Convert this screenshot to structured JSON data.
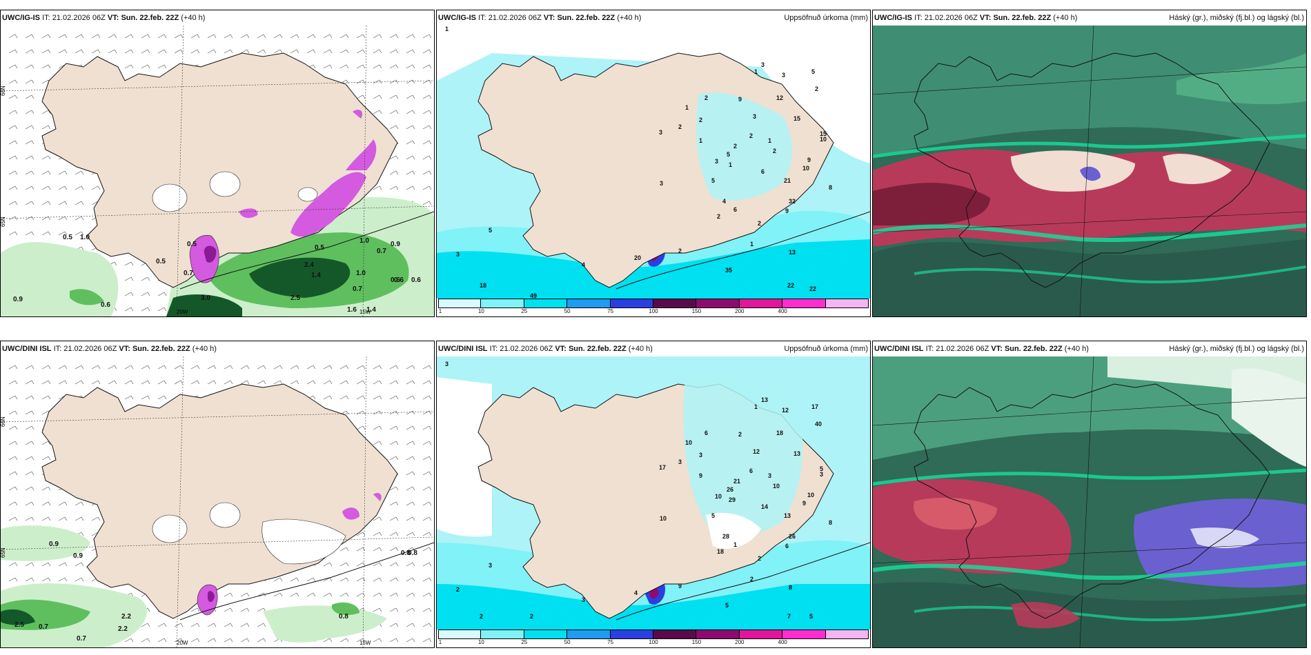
{
  "panels": [
    {
      "model": "UWC/IG-IS",
      "it_label": "IT:",
      "it": "21.02.2026 06Z",
      "vt_label": "VT:",
      "vt": "Sun. 22.feb. 22Z",
      "lead": "(+40 h)",
      "right": ""
    },
    {
      "model": "UWC/IG-IS",
      "it_label": "IT:",
      "it": "21.02.2026 06Z",
      "vt_label": "VT:",
      "vt": "Sun. 22.feb. 22Z",
      "lead": "(+40 h)",
      "right": "Uppsöfnuð úrkoma (mm)"
    },
    {
      "model": "UWC/IG-IS",
      "it_label": "IT:",
      "it": "21.02.2026 06Z",
      "vt_label": "VT:",
      "vt": "Sun. 22.feb. 22Z",
      "lead": "(+40 h)",
      "right": "Háský (gr.), miðský (fj.bl.) og lágský (bl.)"
    },
    {
      "model": "UWC/DINI ISL",
      "it_label": "IT:",
      "it": "21.02.2026 06Z",
      "vt_label": "VT:",
      "vt": "Sun. 22.feb. 22Z",
      "lead": "(+40 h)",
      "right": ""
    },
    {
      "model": "UWC/DINI ISL",
      "it_label": "IT:",
      "it": "21.02.2026 06Z",
      "vt_label": "VT:",
      "vt": "Sun. 22.feb. 22Z",
      "lead": "(+40 h)",
      "right": "Uppsöfnuð úrkoma (mm)"
    },
    {
      "model": "UWC/DINI ISL",
      "it_label": "IT:",
      "it": "21.02.2026 06Z",
      "vt_label": "VT:",
      "vt": "Sun. 22.feb. 22Z",
      "lead": "(+40 h)",
      "right": "Háský (gr.), miðský (fj.bl.) og lágský (bl.)"
    }
  ],
  "graticule": {
    "lat_n66": "66N",
    "lat_n65": "65N",
    "lat_n64": "64N",
    "lon_20w": "20W",
    "lon_15w": "15W"
  },
  "precip_legend": {
    "ticks": [
      "1",
      "10",
      "25",
      "50",
      "75",
      "100",
      "150",
      "200",
      "400"
    ],
    "colors": [
      "#d9fbff",
      "#80f2f8",
      "#00e0f0",
      "#1f9bf0",
      "#2b3fe0",
      "#5a0a4a",
      "#8e0a6e",
      "#e0169b",
      "#ff2dd0",
      "#f5b4f2"
    ]
  },
  "colors": {
    "land": "#efe0d2",
    "sea_precip": "#aef3f7",
    "snow": "#d45adf",
    "snow_dark": "#8c1a96",
    "rain_light": "#cdeecb",
    "rain_mid": "#5fbf5f",
    "rain_dark": "#14582a",
    "cloud_high": "#2f6b57",
    "cloud_mid": "#b83a5a",
    "cloud_low": "#6b60d0",
    "cloud_edge": "#19d89a"
  },
  "wind_labels_top": [
    "0.5",
    "1.0",
    "0.5",
    "0.7",
    "0.5",
    "1.0",
    "0.7",
    "0.9",
    "0.9",
    "0.6",
    "2.4",
    "1.4",
    "2.5",
    "1.0",
    "0.6",
    "0.6",
    "0.7",
    "3.0",
    "1.6",
    "1.4",
    "0.5",
    "0.6"
  ],
  "wind_labels_bottom": [
    "0.9",
    "0.9",
    "0.7",
    "2.2",
    "0.7",
    "2.2",
    "0.8",
    "0.8",
    "0.8",
    "2.5"
  ],
  "precip_labels_top": [
    "1",
    "5",
    "3",
    "18",
    "49",
    "4",
    "20",
    "2",
    "35",
    "13",
    "22",
    "22",
    "1",
    "2",
    "3",
    "3",
    "3",
    "5",
    "2",
    "12",
    "15",
    "2",
    "15",
    "10",
    "9",
    "10",
    "6",
    "21",
    "32",
    "9",
    "8",
    "1",
    "2",
    "2",
    "1",
    "3",
    "3",
    "2",
    "5",
    "1",
    "2",
    "4",
    "9",
    "3",
    "2",
    "1",
    "1",
    "2",
    "5",
    "6"
  ],
  "precip_labels_bottom": [
    "3",
    "3",
    "2",
    "2",
    "2",
    "3",
    "4",
    "9",
    "5",
    "8",
    "7",
    "5",
    "1",
    "6",
    "12",
    "13",
    "12",
    "17",
    "40",
    "18",
    "13",
    "10",
    "5",
    "3",
    "10",
    "9",
    "14",
    "13",
    "26",
    "6",
    "8",
    "10",
    "3",
    "3",
    "9",
    "17",
    "10",
    "18",
    "26",
    "29",
    "21",
    "28",
    "2",
    "10",
    "6",
    "3",
    "2",
    "2",
    "5",
    "1"
  ]
}
